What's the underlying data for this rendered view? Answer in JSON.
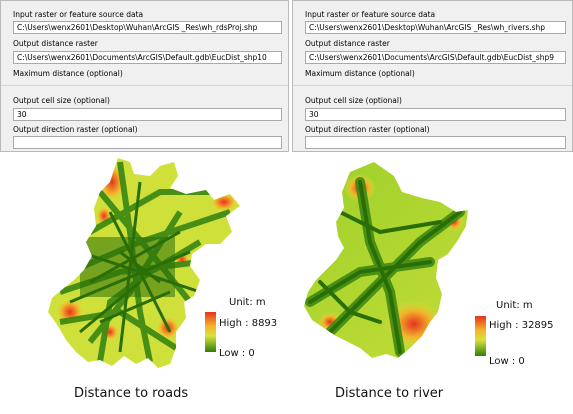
{
  "tool_left": {
    "input_label": "Input raster or feature source data",
    "input_value": "C:\\Users\\wenx2601\\Desktop\\Wuhan\\ArcGIS _Res\\wh_rdsProj.shp",
    "output_label": "Output distance raster",
    "output_value": "C:\\Users\\wenx2601\\Documents\\ArcGIS\\Default.gdb\\EucDist_shp10",
    "max_label": "Maximum distance (optional)",
    "cell_label": "Output cell size (optional)",
    "cell_value": "30",
    "direction_label": "Output direction raster (optional)"
  },
  "tool_right": {
    "input_label": "Input raster or feature source data",
    "input_value": "C:\\Users\\wenx2601\\Desktop\\Wuhan\\ArcGIS _Res\\wh_rivers.shp",
    "output_label": "Output distance raster",
    "output_value": "C:\\Users\\wenx2601\\Documents\\ArcGIS\\Default.gdb\\EucDist_shp9",
    "max_label": "Maximum distance (optional)",
    "cell_label": "Output cell size (optional)",
    "cell_value": "30",
    "direction_label": "Output direction raster (optional)"
  },
  "map_roads": {
    "caption": "Distance to roads",
    "legend_unit": "Unit: m",
    "legend_high": "High : 8893",
    "legend_low": "Low : 0"
  },
  "map_river": {
    "caption": "Distance to river",
    "legend_unit": "Unit: m",
    "legend_high": "High : 32895",
    "legend_low": "Low : 0"
  },
  "colors": {
    "high": "#e3341e",
    "mid": "#f4b32b",
    "low": "#2e7f0e",
    "panel_bg": "#f0f0f0"
  }
}
